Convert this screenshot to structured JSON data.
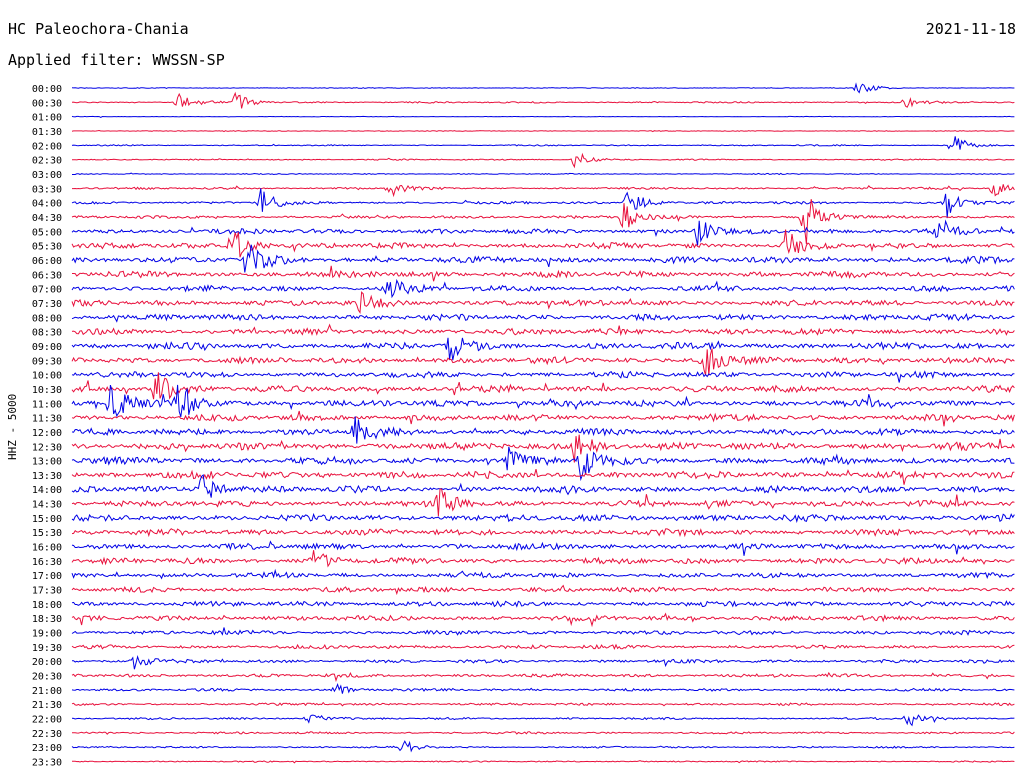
{
  "header": {
    "station": "HC Paleochora-Chania",
    "date": "2021-11-18",
    "filter_label": "Applied filter: WWSSN-SP"
  },
  "chart_data": {
    "type": "line",
    "title": "HC Paleochora-Chania",
    "ylabel": "HHZ - 5000",
    "x_range_minutes": [
      0,
      30
    ],
    "rows": [
      "00:00",
      "00:30",
      "01:00",
      "01:30",
      "02:00",
      "02:30",
      "03:00",
      "03:30",
      "04:00",
      "04:30",
      "05:00",
      "05:30",
      "06:00",
      "06:30",
      "07:00",
      "07:30",
      "08:00",
      "08:30",
      "09:00",
      "09:30",
      "10:00",
      "10:30",
      "11:00",
      "11:30",
      "12:00",
      "12:30",
      "13:00",
      "13:30",
      "14:00",
      "14:30",
      "15:00",
      "15:30",
      "16:00",
      "16:30",
      "17:00",
      "17:30",
      "18:00",
      "18:30",
      "19:00",
      "19:30",
      "20:00",
      "20:30",
      "21:00",
      "21:30",
      "22:00",
      "22:30",
      "23:00",
      "23:30"
    ],
    "series_colors": [
      "#0000e6",
      "#e8103c"
    ],
    "noise_level": [
      0.3,
      0.6,
      0.2,
      0.3,
      0.5,
      0.5,
      0.4,
      0.8,
      1.0,
      1.2,
      2.0,
      2.2,
      2.5,
      2.4,
      2.2,
      2.3,
      2.4,
      2.4,
      2.5,
      2.4,
      2.3,
      2.5,
      2.6,
      2.5,
      2.5,
      2.8,
      2.8,
      2.7,
      2.6,
      2.5,
      2.6,
      2.5,
      2.4,
      2.3,
      2.0,
      2.0,
      2.0,
      2.0,
      1.6,
      1.5,
      1.3,
      1.3,
      1.0,
      0.9,
      0.8,
      0.8,
      0.7,
      0.5
    ],
    "events": [
      {
        "row": 0,
        "minute": 25.0,
        "amplitude": 7
      },
      {
        "row": 1,
        "minute": 3.4,
        "amplitude": 10
      },
      {
        "row": 1,
        "minute": 5.2,
        "amplitude": 9
      },
      {
        "row": 1,
        "minute": 26.5,
        "amplitude": 5
      },
      {
        "row": 4,
        "minute": 28.0,
        "amplitude": 13
      },
      {
        "row": 5,
        "minute": 16.0,
        "amplitude": 9
      },
      {
        "row": 7,
        "minute": 10.1,
        "amplitude": 10
      },
      {
        "row": 7,
        "minute": 29.3,
        "amplitude": 8
      },
      {
        "row": 8,
        "minute": 6.0,
        "amplitude": 14
      },
      {
        "row": 8,
        "minute": 17.7,
        "amplitude": 16
      },
      {
        "row": 8,
        "minute": 27.8,
        "amplitude": 16
      },
      {
        "row": 9,
        "minute": 17.5,
        "amplitude": 16
      },
      {
        "row": 9,
        "minute": 23.3,
        "amplitude": 30
      },
      {
        "row": 10,
        "minute": 19.9,
        "amplitude": 18
      },
      {
        "row": 10,
        "minute": 27.5,
        "amplitude": 15
      },
      {
        "row": 11,
        "minute": 5.1,
        "amplitude": 20
      },
      {
        "row": 11,
        "minute": 22.7,
        "amplitude": 18
      },
      {
        "row": 12,
        "minute": 5.6,
        "amplitude": 24
      },
      {
        "row": 14,
        "minute": 10.1,
        "amplitude": 12
      },
      {
        "row": 15,
        "minute": 9.2,
        "amplitude": 10
      },
      {
        "row": 18,
        "minute": 12.0,
        "amplitude": 16
      },
      {
        "row": 19,
        "minute": 20.1,
        "amplitude": 20
      },
      {
        "row": 21,
        "minute": 2.7,
        "amplitude": 22
      },
      {
        "row": 22,
        "minute": 1.2,
        "amplitude": 22
      },
      {
        "row": 22,
        "minute": 3.4,
        "amplitude": 26
      },
      {
        "row": 24,
        "minute": 9.0,
        "amplitude": 16
      },
      {
        "row": 25,
        "minute": 16.0,
        "amplitude": 22
      },
      {
        "row": 26,
        "minute": 13.9,
        "amplitude": 15
      },
      {
        "row": 26,
        "minute": 16.2,
        "amplitude": 22
      },
      {
        "row": 28,
        "minute": 4.1,
        "amplitude": 18
      },
      {
        "row": 29,
        "minute": 11.7,
        "amplitude": 16
      },
      {
        "row": 33,
        "minute": 7.7,
        "amplitude": 10
      },
      {
        "row": 40,
        "minute": 2.0,
        "amplitude": 8
      },
      {
        "row": 42,
        "minute": 8.4,
        "amplitude": 6
      },
      {
        "row": 44,
        "minute": 7.5,
        "amplitude": 8
      },
      {
        "row": 44,
        "minute": 26.6,
        "amplitude": 9
      },
      {
        "row": 46,
        "minute": 10.5,
        "amplitude": 7
      }
    ]
  }
}
